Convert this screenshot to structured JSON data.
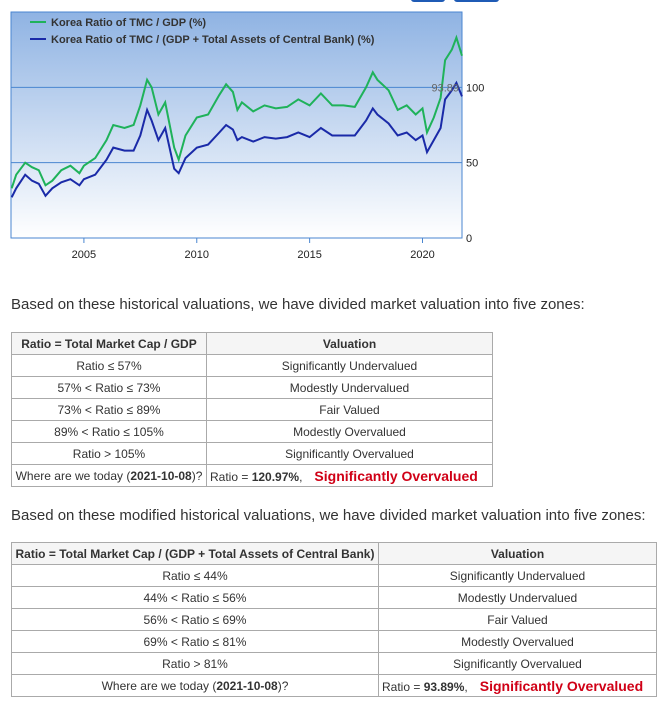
{
  "chart_data": {
    "type": "line",
    "xlim": [
      2001.77,
      2021.75
    ],
    "ylim": [
      0,
      150
    ],
    "x_ticks": [
      "2005",
      "2010",
      "2015",
      "2020"
    ],
    "y_ticks": [
      "0",
      "50",
      "100"
    ],
    "legend_placement": "top-left",
    "series": [
      {
        "name": "Korea Ratio of TMC / GDP (%)",
        "color": "#1fb25a",
        "last_label": "120.97",
        "points": [
          [
            2001.8,
            33
          ],
          [
            2002,
            42
          ],
          [
            2002.4,
            50
          ],
          [
            2002.7,
            47
          ],
          [
            2003,
            45
          ],
          [
            2003.3,
            35
          ],
          [
            2003.6,
            38
          ],
          [
            2004,
            45
          ],
          [
            2004.4,
            48
          ],
          [
            2004.8,
            43
          ],
          [
            2005,
            48
          ],
          [
            2005.5,
            53
          ],
          [
            2006,
            65
          ],
          [
            2006.3,
            75
          ],
          [
            2006.8,
            73
          ],
          [
            2007.2,
            75
          ],
          [
            2007.5,
            88
          ],
          [
            2007.8,
            105
          ],
          [
            2008,
            100
          ],
          [
            2008.3,
            82
          ],
          [
            2008.6,
            90
          ],
          [
            2009,
            60
          ],
          [
            2009.2,
            52
          ],
          [
            2009.5,
            68
          ],
          [
            2010,
            80
          ],
          [
            2010.5,
            82
          ],
          [
            2011,
            95
          ],
          [
            2011.3,
            102
          ],
          [
            2011.6,
            97
          ],
          [
            2011.8,
            85
          ],
          [
            2012,
            90
          ],
          [
            2012.5,
            84
          ],
          [
            2013,
            88
          ],
          [
            2013.5,
            86
          ],
          [
            2014,
            87
          ],
          [
            2014.5,
            92
          ],
          [
            2015,
            88
          ],
          [
            2015.5,
            96
          ],
          [
            2016,
            88
          ],
          [
            2016.5,
            88
          ],
          [
            2017,
            87
          ],
          [
            2017.5,
            100
          ],
          [
            2017.8,
            110
          ],
          [
            2018,
            105
          ],
          [
            2018.5,
            98
          ],
          [
            2018.9,
            85
          ],
          [
            2019.3,
            88
          ],
          [
            2019.7,
            82
          ],
          [
            2020,
            86
          ],
          [
            2020.2,
            70
          ],
          [
            2020.5,
            80
          ],
          [
            2020.8,
            93
          ],
          [
            2021,
            118
          ],
          [
            2021.3,
            125
          ],
          [
            2021.5,
            133
          ],
          [
            2021.75,
            121
          ]
        ]
      },
      {
        "name": "Korea Ratio of TMC / (GDP + Total Assets of Central Bank) (%)",
        "color": "#1a2aa8",
        "last_label": "93.89",
        "points": [
          [
            2001.8,
            27
          ],
          [
            2002,
            33
          ],
          [
            2002.4,
            42
          ],
          [
            2002.7,
            38
          ],
          [
            2003,
            36
          ],
          [
            2003.3,
            28
          ],
          [
            2003.6,
            33
          ],
          [
            2004,
            37
          ],
          [
            2004.4,
            39
          ],
          [
            2004.8,
            35
          ],
          [
            2005,
            39
          ],
          [
            2005.5,
            42
          ],
          [
            2006,
            52
          ],
          [
            2006.3,
            60
          ],
          [
            2006.8,
            58
          ],
          [
            2007.2,
            58
          ],
          [
            2007.5,
            68
          ],
          [
            2007.8,
            85
          ],
          [
            2008,
            78
          ],
          [
            2008.3,
            65
          ],
          [
            2008.6,
            73
          ],
          [
            2009,
            46
          ],
          [
            2009.2,
            43
          ],
          [
            2009.5,
            53
          ],
          [
            2010,
            60
          ],
          [
            2010.5,
            62
          ],
          [
            2011,
            70
          ],
          [
            2011.3,
            75
          ],
          [
            2011.6,
            72
          ],
          [
            2011.8,
            65
          ],
          [
            2012,
            67
          ],
          [
            2012.5,
            64
          ],
          [
            2013,
            67
          ],
          [
            2013.5,
            66
          ],
          [
            2014,
            67
          ],
          [
            2014.5,
            70
          ],
          [
            2015,
            67
          ],
          [
            2015.5,
            73
          ],
          [
            2016,
            68
          ],
          [
            2016.5,
            68
          ],
          [
            2017,
            68
          ],
          [
            2017.5,
            78
          ],
          [
            2017.8,
            86
          ],
          [
            2018,
            82
          ],
          [
            2018.5,
            76
          ],
          [
            2018.9,
            68
          ],
          [
            2019.3,
            70
          ],
          [
            2019.7,
            65
          ],
          [
            2020,
            68
          ],
          [
            2020.2,
            57
          ],
          [
            2020.5,
            65
          ],
          [
            2020.8,
            73
          ],
          [
            2021,
            92
          ],
          [
            2021.3,
            98
          ],
          [
            2021.5,
            103
          ],
          [
            2021.75,
            94
          ]
        ]
      }
    ]
  },
  "section1": {
    "intro": "Based on these historical valuations, we have divided market valuation into five zones:",
    "headers": [
      "Ratio = Total Market Cap / GDP",
      "Valuation"
    ],
    "rows": [
      [
        "Ratio ≤ 57%",
        "Significantly Undervalued"
      ],
      [
        "57% < Ratio ≤ 73%",
        "Modestly Undervalued"
      ],
      [
        "73% < Ratio ≤ 89%",
        "Fair Valued"
      ],
      [
        "89% < Ratio ≤ 105%",
        "Modestly Overvalued"
      ],
      [
        "Ratio > 105%",
        "Significantly Overvalued"
      ]
    ],
    "today": {
      "prefix": "Where are we today (",
      "date": "2021-10-08",
      "suffix": ")?",
      "ratio_prefix": "Ratio = ",
      "ratio": "120.97%",
      "ratio_suffix": ",",
      "verdict": "Significantly Overvalued"
    }
  },
  "section2": {
    "intro": "Based on these modified historical valuations, we have divided market valuation into five zones:",
    "headers": [
      "Ratio = Total Market Cap / (GDP + Total Assets of Central Bank)",
      "Valuation"
    ],
    "rows": [
      [
        "Ratio ≤ 44%",
        "Significantly Undervalued"
      ],
      [
        "44% < Ratio ≤ 56%",
        "Modestly Undervalued"
      ],
      [
        "56% < Ratio ≤ 69%",
        "Fair Valued"
      ],
      [
        "69% < Ratio ≤ 81%",
        "Modestly Overvalued"
      ],
      [
        "Ratio > 81%",
        "Significantly Overvalued"
      ]
    ],
    "today": {
      "prefix": "Where are we today (",
      "date": "2021-10-08",
      "suffix": ")?",
      "ratio_prefix": "Ratio = ",
      "ratio": "93.89%",
      "ratio_suffix": ",",
      "verdict": "Significantly Overvalued"
    }
  }
}
